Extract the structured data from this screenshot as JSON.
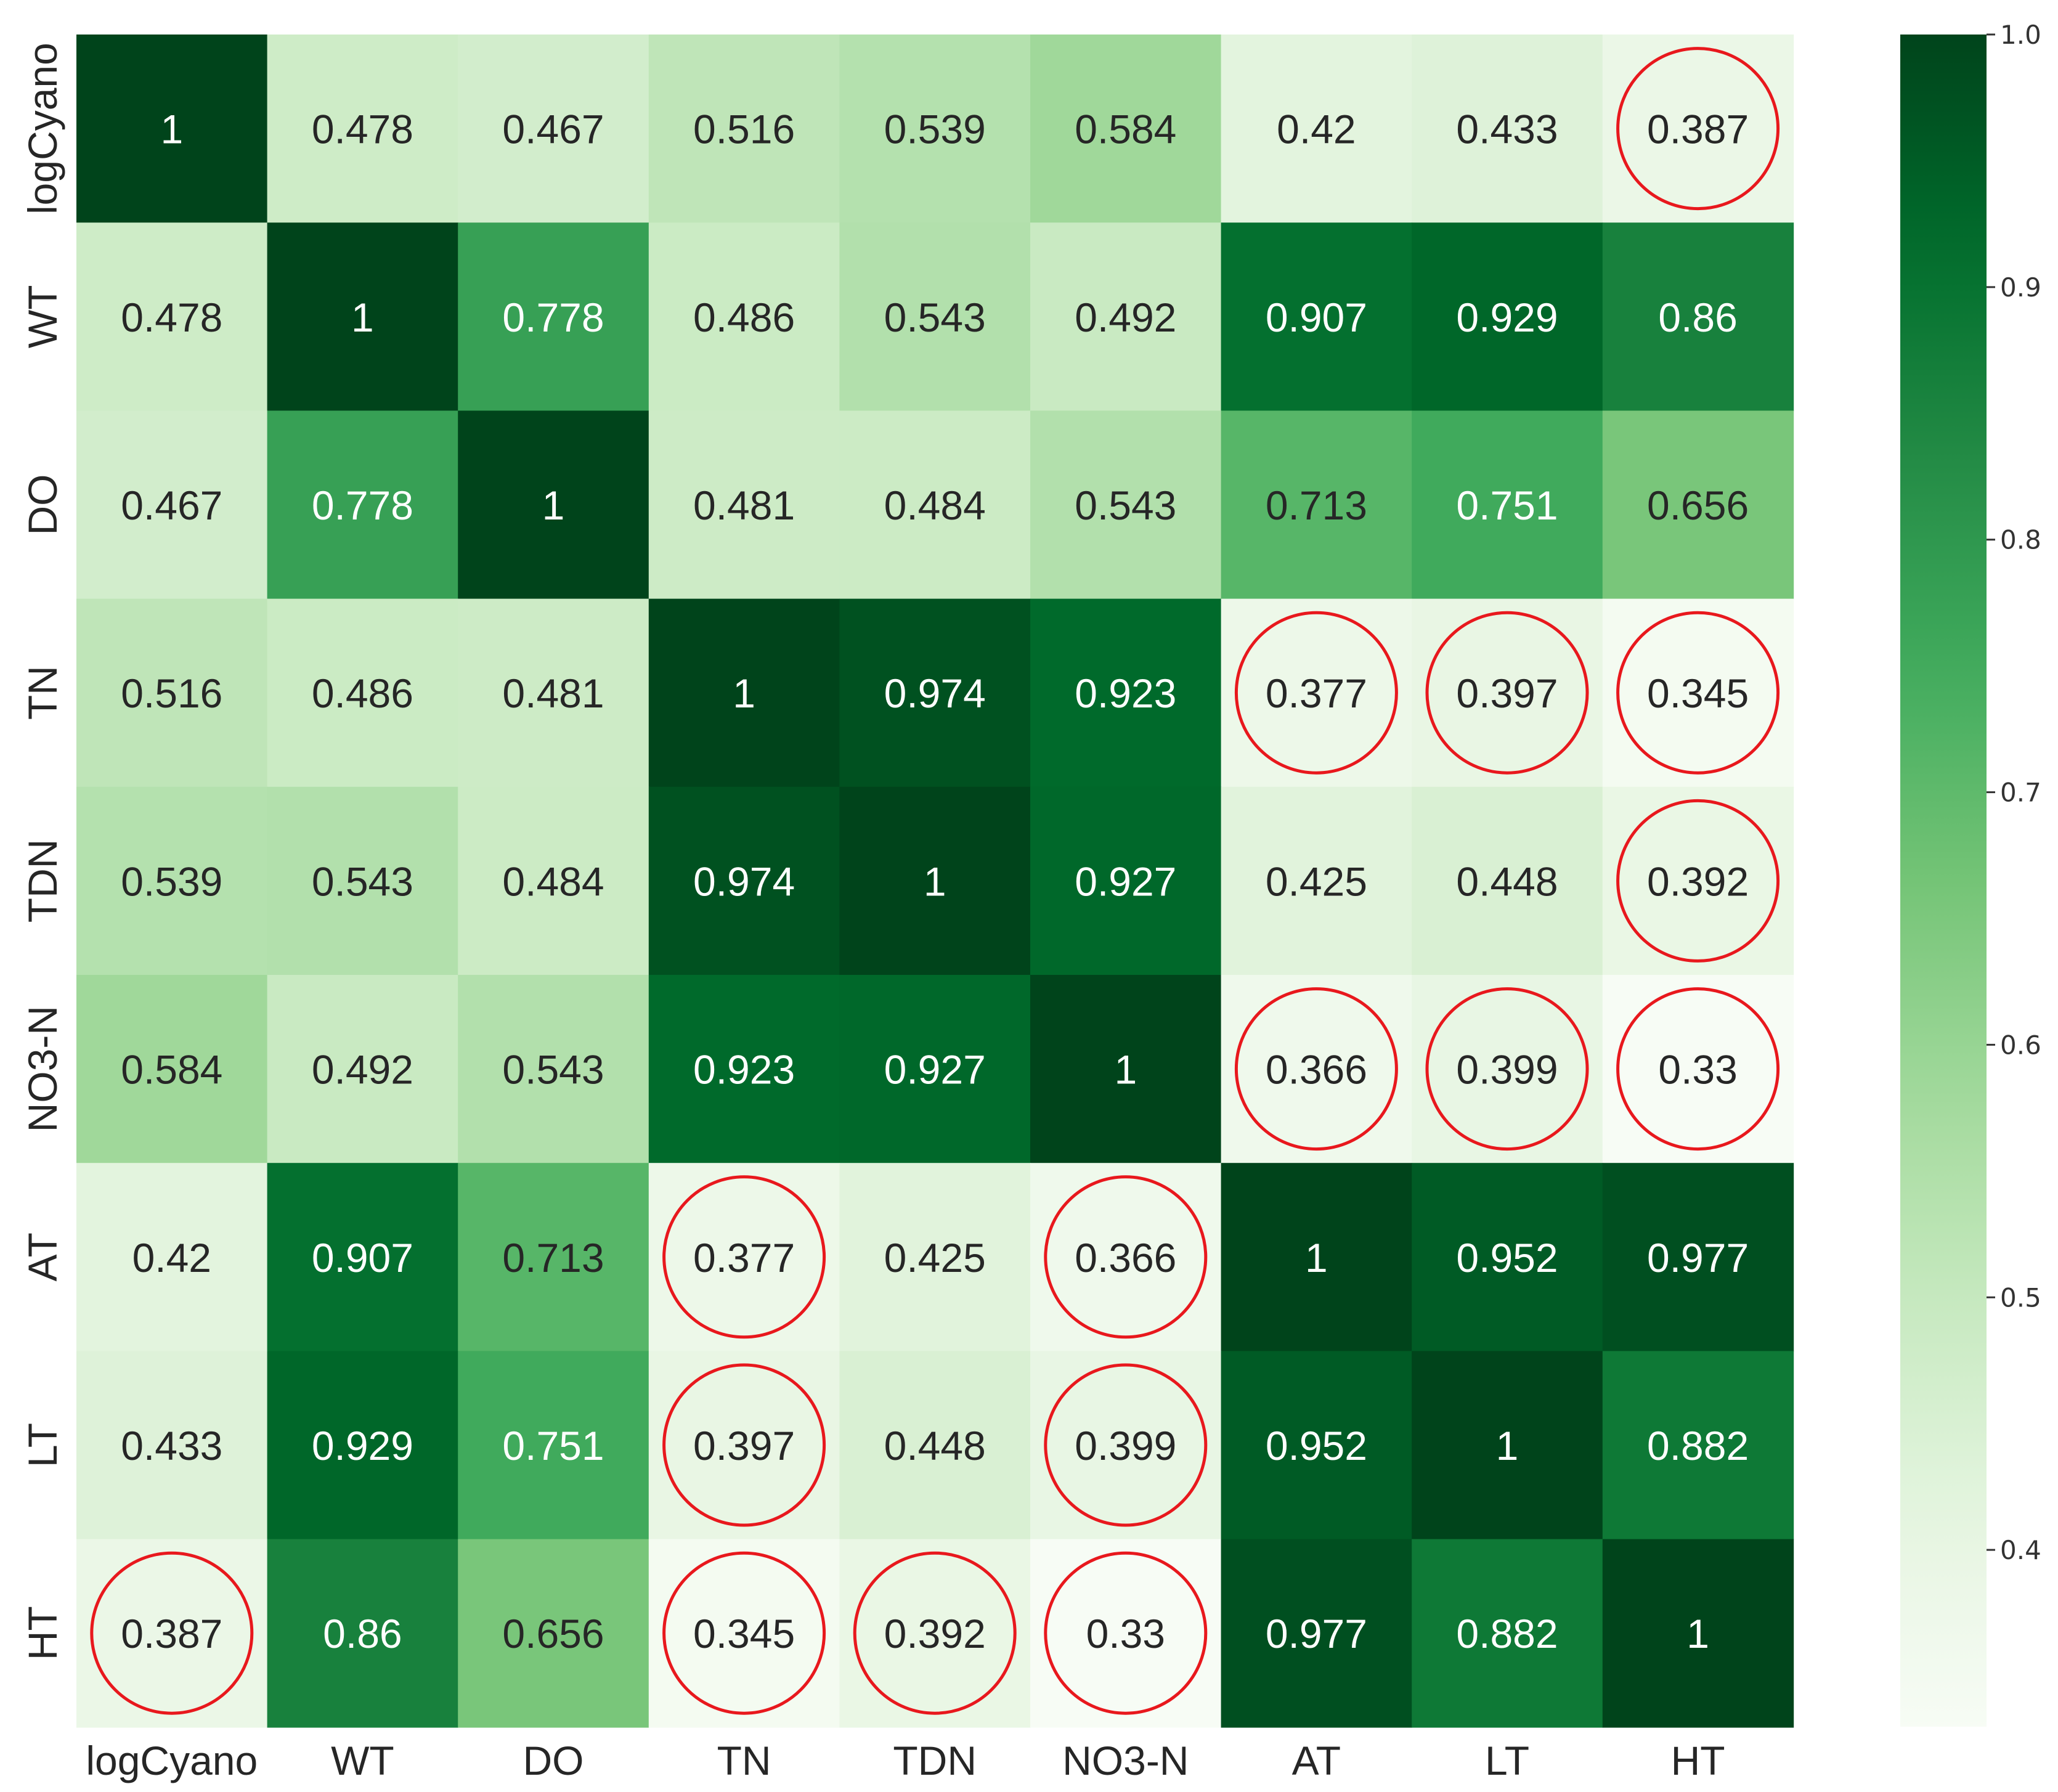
{
  "chart_data": {
    "type": "heatmap",
    "title": "",
    "xlabel": "",
    "ylabel": "",
    "labels": [
      "logCyano",
      "WT",
      "DO",
      "TN",
      "TDN",
      "NO3-N",
      "AT",
      "LT",
      "HT"
    ],
    "matrix": [
      [
        "1",
        "0.478",
        "0.467",
        "0.516",
        "0.539",
        "0.584",
        "0.42",
        "0.433",
        "0.387"
      ],
      [
        "0.478",
        "1",
        "0.778",
        "0.486",
        "0.543",
        "0.492",
        "0.907",
        "0.929",
        "0.86"
      ],
      [
        "0.467",
        "0.778",
        "1",
        "0.481",
        "0.484",
        "0.543",
        "0.713",
        "0.751",
        "0.656"
      ],
      [
        "0.516",
        "0.486",
        "0.481",
        "1",
        "0.974",
        "0.923",
        "0.377",
        "0.397",
        "0.345"
      ],
      [
        "0.539",
        "0.543",
        "0.484",
        "0.974",
        "1",
        "0.927",
        "0.425",
        "0.448",
        "0.392"
      ],
      [
        "0.584",
        "0.492",
        "0.543",
        "0.923",
        "0.927",
        "1",
        "0.366",
        "0.399",
        "0.33"
      ],
      [
        "0.42",
        "0.907",
        "0.713",
        "0.377",
        "0.425",
        "0.366",
        "1",
        "0.952",
        "0.977"
      ],
      [
        "0.433",
        "0.929",
        "0.751",
        "0.397",
        "0.448",
        "0.399",
        "0.952",
        "1",
        "0.882"
      ],
      [
        "0.387",
        "0.86",
        "0.656",
        "0.345",
        "0.392",
        "0.33",
        "0.977",
        "0.882",
        "1"
      ]
    ],
    "colormap": "Greens",
    "value_range": [
      0.33,
      1.0
    ],
    "colorbar": {
      "position": "right",
      "ticks": [
        "0.4",
        "0.5",
        "0.6",
        "0.7",
        "0.8",
        "0.9",
        "1.0"
      ]
    },
    "highlight_threshold": 0.4,
    "highlight_color": "#e8181d",
    "grid": false
  }
}
